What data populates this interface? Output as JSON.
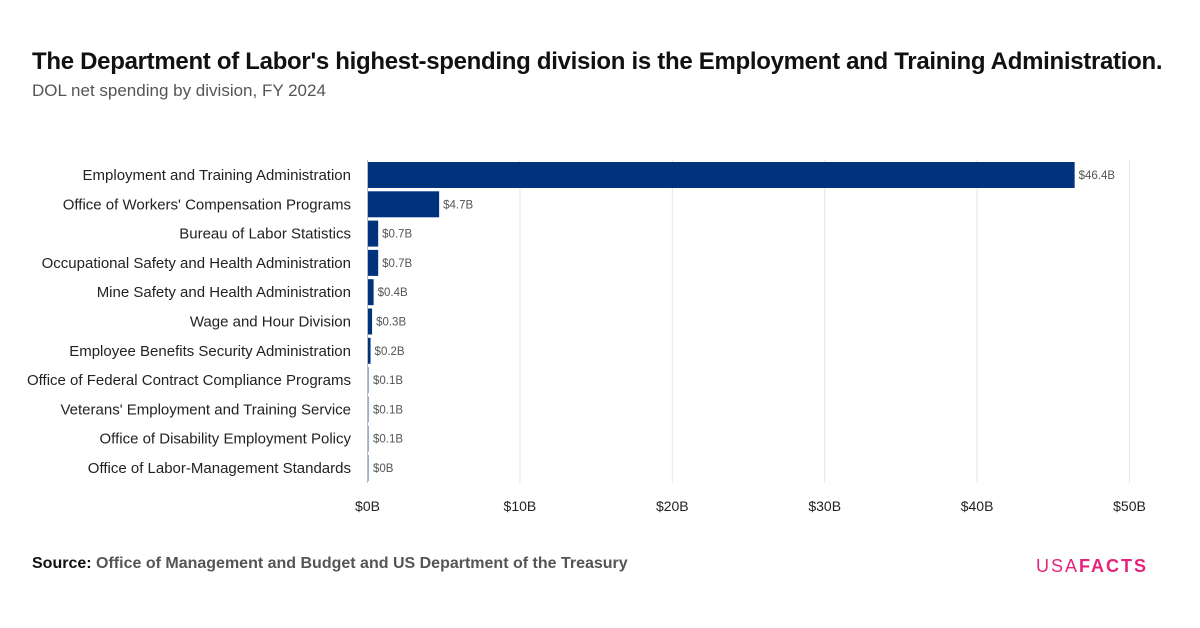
{
  "title": "The Department of Labor's highest-spending division is the Employment and Training Administration.",
  "subtitle": "DOL net spending by division, FY 2024",
  "source": {
    "label": "Source:",
    "text": "Office of Management and Budget and US Department of the Treasury"
  },
  "logo": {
    "part1": "USA",
    "part2": "FACTS"
  },
  "colors": {
    "bar": "#00337c",
    "bar_light": "#9aaed3",
    "grid": "#e6e6e6",
    "label": "#222222",
    "value_label": "#555555"
  },
  "chart_data": {
    "type": "bar",
    "orientation": "horizontal",
    "categories": [
      "Employment and Training Administration",
      "Office of Workers' Compensation Programs",
      "Bureau of Labor Statistics",
      "Occupational Safety and Health Administration",
      "Mine Safety and Health Administration",
      "Wage and Hour Division",
      "Employee Benefits Security Administration",
      "Office of Federal Contract Compliance Programs",
      "Veterans' Employment and Training Service",
      "Office of Disability Employment Policy",
      "Office of Labor-Management Standards"
    ],
    "values": [
      46.4,
      4.7,
      0.7,
      0.7,
      0.4,
      0.3,
      0.2,
      0.1,
      0.1,
      0.1,
      0.0
    ],
    "value_labels": [
      "$46.4B",
      "$4.7B",
      "$0.7B",
      "$0.7B",
      "$0.4B",
      "$0.3B",
      "$0.2B",
      "$0.1B",
      "$0.1B",
      "$0.1B",
      "$0B"
    ],
    "xlim": [
      0,
      50
    ],
    "x_ticks": [
      0,
      10,
      20,
      30,
      40,
      50
    ],
    "x_tick_labels": [
      "$0B",
      "$10B",
      "$20B",
      "$30B",
      "$40B",
      "$50B"
    ],
    "unit": "billions of dollars",
    "grid": true,
    "legend": "none"
  }
}
